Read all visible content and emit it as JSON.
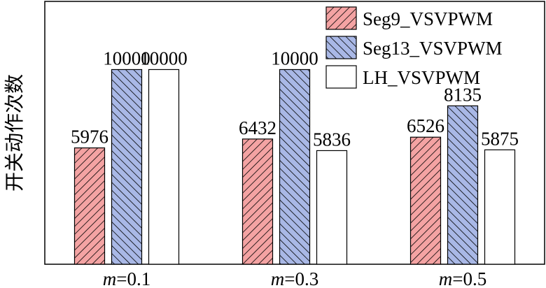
{
  "chart_data": {
    "type": "bar",
    "categories_var": "m",
    "categories_val": [
      "=0.1",
      "=0.3",
      "=0.5"
    ],
    "ylabel": "开关动作次数",
    "xlabel": "",
    "ylim": [
      0,
      13500
    ],
    "grid": false,
    "legend_position": "top-right",
    "series": [
      {
        "name": "Seg9_VSVPWM",
        "values": [
          5976,
          6432,
          6526
        ],
        "fill": "#f4a3a3",
        "pattern": "hatch-forward"
      },
      {
        "name": "Seg13_VSVPWM",
        "values": [
          10000,
          10000,
          8135
        ],
        "fill": "#a9b8e6",
        "pattern": "hatch-back"
      },
      {
        "name": "LH_VSVPWM",
        "values": [
          10000,
          5836,
          5875
        ],
        "fill": "#ffffff",
        "pattern": "none"
      }
    ]
  }
}
